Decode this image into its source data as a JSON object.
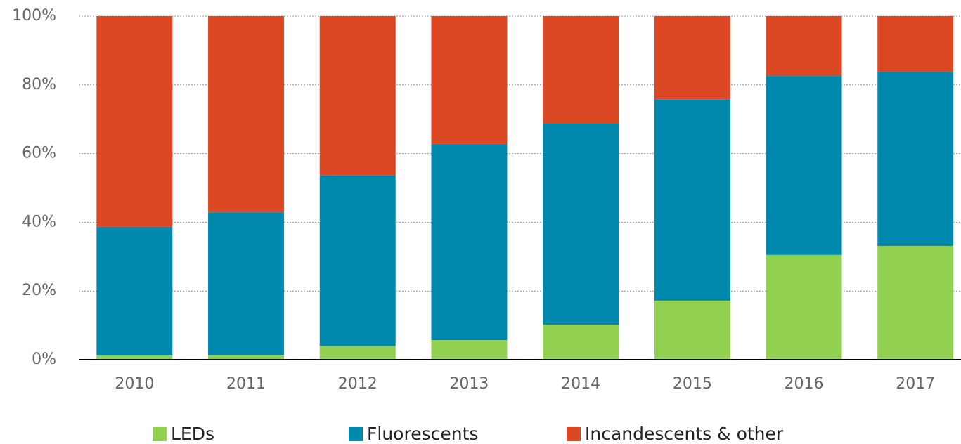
{
  "chart_data": {
    "type": "stacked_bar",
    "categories": [
      "2010",
      "2011",
      "2012",
      "2013",
      "2014",
      "2015",
      "2016",
      "2017"
    ],
    "series": [
      {
        "name": "LEDs",
        "color": "#92d050",
        "values": [
          1.2,
          1.4,
          4,
          5.7,
          10.2,
          17.2,
          30.5,
          33.1
        ]
      },
      {
        "name": "Fluorescents",
        "color": "#0089ad",
        "values": [
          37.5,
          41.5,
          49.6,
          57.1,
          58.7,
          58.5,
          52.1,
          50.7
        ]
      },
      {
        "name": "Incandescents & other",
        "color": "#dc4724",
        "values": [
          61.3,
          57.1,
          46.4,
          37.2,
          31.1,
          24.3,
          17.4,
          16.2
        ]
      }
    ],
    "ylim": [
      0,
      100
    ],
    "yticks": [
      {
        "value": 0,
        "label": "0%"
      },
      {
        "value": 20,
        "label": "20%"
      },
      {
        "value": 40,
        "label": "40%"
      },
      {
        "value": 60,
        "label": "60%"
      },
      {
        "value": 80,
        "label": "80%"
      },
      {
        "value": 100,
        "label": "100%"
      }
    ],
    "grid": true,
    "legend": "bottom"
  }
}
